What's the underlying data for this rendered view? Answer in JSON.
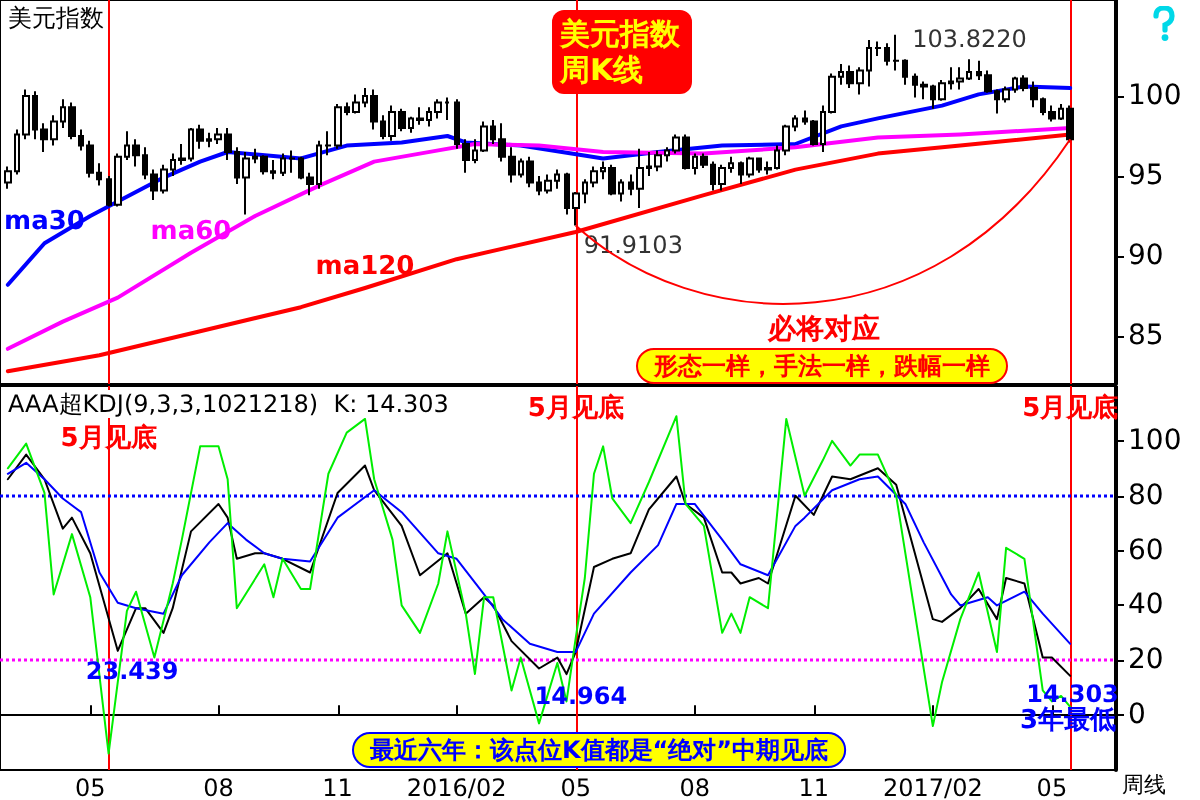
{
  "chart_data": [
    {
      "type": "candlestick",
      "title": "美元指数",
      "x": [
        "2015-02-27",
        "2015-03-06",
        "2015-03-13",
        "2015-03-20",
        "2015-03-27",
        "2015-04-03",
        "2015-04-10",
        "2015-04-17",
        "2015-04-24",
        "2015-05-01",
        "2015-05-08",
        "2015-05-15",
        "2015-05-22",
        "2015-05-29",
        "2015-06-05",
        "2015-06-12",
        "2015-06-19",
        "2015-06-26",
        "2015-07-03",
        "2015-07-10",
        "2015-07-17",
        "2015-07-24",
        "2015-07-31",
        "2015-08-07",
        "2015-08-14",
        "2015-08-21",
        "2015-08-28",
        "2015-09-04",
        "2015-09-11",
        "2015-09-18",
        "2015-09-25",
        "2015-10-02",
        "2015-10-09",
        "2015-10-16",
        "2015-10-23",
        "2015-10-30",
        "2015-11-06",
        "2015-11-13",
        "2015-11-20",
        "2015-11-27",
        "2015-12-04",
        "2015-12-11",
        "2015-12-18",
        "2015-12-25",
        "2016-01-01",
        "2016-01-08",
        "2016-01-15",
        "2016-01-22",
        "2016-01-29",
        "2016-02-05",
        "2016-02-12",
        "2016-02-19",
        "2016-02-26",
        "2016-03-04",
        "2016-03-11",
        "2016-03-18",
        "2016-03-25",
        "2016-04-01",
        "2016-04-08",
        "2016-04-15",
        "2016-04-22",
        "2016-04-29",
        "2016-05-06",
        "2016-05-13",
        "2016-05-20",
        "2016-05-27",
        "2016-06-03",
        "2016-06-10",
        "2016-06-17",
        "2016-06-24",
        "2016-07-01",
        "2016-07-08",
        "2016-07-15",
        "2016-07-22",
        "2016-07-29",
        "2016-08-05",
        "2016-08-12",
        "2016-08-19",
        "2016-08-26",
        "2016-09-02",
        "2016-09-09",
        "2016-09-16",
        "2016-09-23",
        "2016-09-30",
        "2016-10-07",
        "2016-10-14",
        "2016-10-21",
        "2016-10-28",
        "2016-11-04",
        "2016-11-11",
        "2016-11-18",
        "2016-11-25",
        "2016-12-02",
        "2016-12-09",
        "2016-12-16",
        "2016-12-23",
        "2016-12-30",
        "2017-01-06",
        "2017-01-13",
        "2017-01-20",
        "2017-01-27",
        "2017-02-03",
        "2017-02-10",
        "2017-02-17",
        "2017-02-24",
        "2017-03-03",
        "2017-03-10",
        "2017-03-17",
        "2017-03-24",
        "2017-03-31",
        "2017-04-07",
        "2017-04-14",
        "2017-04-21",
        "2017-04-28",
        "2017-05-05",
        "2017-05-12",
        "2017-05-19"
      ],
      "ohlc": [
        [
          94.6,
          95.6,
          94.2,
          95.3
        ],
        [
          95.3,
          97.9,
          95.1,
          97.6
        ],
        [
          97.6,
          100.4,
          97.3,
          100.0
        ],
        [
          100.0,
          100.3,
          97.3,
          97.9
        ],
        [
          97.9,
          98.3,
          96.5,
          97.3
        ],
        [
          97.3,
          98.8,
          96.9,
          98.4
        ],
        [
          98.4,
          99.8,
          98.0,
          99.3
        ],
        [
          99.3,
          99.6,
          97.3,
          97.5
        ],
        [
          97.5,
          97.9,
          96.6,
          96.9
        ],
        [
          96.9,
          97.2,
          94.9,
          95.2
        ],
        [
          95.2,
          95.8,
          94.4,
          94.8
        ],
        [
          94.8,
          95.0,
          93.1,
          93.2
        ],
        [
          93.2,
          96.4,
          93.1,
          96.2
        ],
        [
          96.2,
          97.8,
          96.0,
          96.9
        ],
        [
          96.9,
          97.3,
          95.6,
          96.3
        ],
        [
          96.3,
          96.8,
          94.8,
          95.1
        ],
        [
          95.1,
          95.4,
          93.5,
          94.1
        ],
        [
          94.1,
          95.7,
          93.9,
          95.4
        ],
        [
          95.4,
          96.4,
          95.0,
          96.0
        ],
        [
          96.0,
          97.0,
          95.7,
          96.1
        ],
        [
          96.1,
          98.0,
          95.9,
          97.9
        ],
        [
          97.9,
          98.2,
          96.7,
          97.2
        ],
        [
          97.2,
          97.7,
          96.8,
          97.3
        ],
        [
          97.3,
          98.0,
          97.0,
          97.6
        ],
        [
          97.6,
          98.0,
          96.0,
          96.5
        ],
        [
          96.5,
          96.8,
          94.5,
          94.9
        ],
        [
          94.9,
          96.5,
          92.6,
          96.1
        ],
        [
          96.1,
          96.7,
          95.8,
          96.2
        ],
        [
          96.2,
          96.3,
          95.1,
          95.3
        ],
        [
          95.3,
          96.0,
          94.8,
          95.2
        ],
        [
          95.2,
          96.4,
          95.0,
          96.1
        ],
        [
          96.1,
          96.6,
          95.2,
          96.1
        ],
        [
          96.1,
          96.2,
          94.8,
          94.9
        ],
        [
          94.9,
          95.2,
          93.8,
          94.5
        ],
        [
          94.5,
          97.2,
          94.2,
          96.9
        ],
        [
          96.9,
          97.8,
          96.3,
          96.9
        ],
        [
          96.9,
          99.5,
          96.7,
          99.3
        ],
        [
          99.3,
          99.6,
          98.8,
          99.0
        ],
        [
          99.0,
          100.1,
          98.9,
          99.6
        ],
        [
          99.6,
          100.5,
          99.3,
          100.0
        ],
        [
          100.0,
          100.4,
          97.9,
          98.4
        ],
        [
          98.4,
          98.8,
          97.3,
          97.5
        ],
        [
          97.5,
          99.4,
          97.2,
          99.0
        ],
        [
          99.0,
          99.2,
          97.8,
          98.0
        ],
        [
          98.0,
          98.7,
          97.7,
          98.6
        ],
        [
          98.6,
          99.3,
          98.2,
          98.5
        ],
        [
          98.5,
          99.3,
          98.1,
          99.0
        ],
        [
          99.0,
          99.8,
          98.6,
          99.6
        ],
        [
          99.6,
          99.9,
          98.5,
          99.6
        ],
        [
          99.6,
          99.8,
          96.7,
          97.0
        ],
        [
          97.0,
          97.3,
          95.2,
          96.0
        ],
        [
          96.0,
          97.3,
          95.8,
          96.6
        ],
        [
          96.6,
          98.4,
          96.5,
          98.1
        ],
        [
          98.1,
          98.5,
          97.0,
          97.3
        ],
        [
          97.3,
          98.3,
          95.9,
          96.2
        ],
        [
          96.2,
          96.8,
          94.6,
          95.1
        ],
        [
          95.1,
          96.1,
          94.9,
          95.9
        ],
        [
          95.9,
          96.2,
          94.3,
          94.6
        ],
        [
          94.6,
          95.0,
          93.8,
          94.1
        ],
        [
          94.1,
          95.1,
          93.9,
          94.7
        ],
        [
          94.7,
          95.4,
          94.2,
          95.1
        ],
        [
          95.1,
          95.2,
          92.6,
          93.0
        ],
        [
          93.0,
          94.0,
          91.9103,
          93.9
        ],
        [
          93.9,
          94.8,
          93.3,
          94.6
        ],
        [
          94.6,
          95.6,
          94.3,
          95.3
        ],
        [
          95.3,
          95.9,
          94.8,
          95.5
        ],
        [
          95.5,
          95.7,
          93.8,
          93.9
        ],
        [
          93.9,
          94.8,
          93.4,
          94.6
        ],
        [
          94.6,
          95.1,
          93.8,
          94.2
        ],
        [
          94.2,
          96.7,
          93.0,
          95.5
        ],
        [
          95.5,
          96.5,
          95.0,
          95.6
        ],
        [
          95.6,
          96.6,
          95.3,
          96.3
        ],
        [
          96.3,
          96.8,
          95.9,
          96.6
        ],
        [
          96.6,
          97.6,
          96.4,
          97.4
        ],
        [
          97.4,
          97.6,
          95.4,
          95.5
        ],
        [
          95.5,
          96.4,
          95.1,
          96.2
        ],
        [
          96.2,
          96.4,
          95.5,
          95.7
        ],
        [
          95.7,
          95.9,
          94.1,
          94.5
        ],
        [
          94.5,
          95.7,
          94.1,
          95.5
        ],
        [
          95.5,
          96.2,
          95.2,
          95.8
        ],
        [
          95.8,
          95.9,
          94.5,
          95.1
        ],
        [
          95.1,
          96.2,
          94.9,
          96.1
        ],
        [
          96.1,
          96.1,
          95.2,
          95.4
        ],
        [
          95.4,
          95.9,
          95.1,
          95.5
        ],
        [
          95.5,
          96.9,
          95.4,
          96.6
        ],
        [
          96.6,
          98.2,
          96.3,
          98.1
        ],
        [
          98.1,
          98.8,
          97.8,
          98.6
        ],
        [
          98.6,
          99.1,
          98.2,
          98.4
        ],
        [
          98.4,
          98.5,
          96.9,
          97.0
        ],
        [
          97.0,
          99.4,
          96.5,
          99.0
        ],
        [
          99.0,
          101.4,
          98.9,
          101.2
        ],
        [
          101.2,
          102.0,
          100.7,
          101.5
        ],
        [
          101.5,
          101.9,
          100.5,
          100.8
        ],
        [
          100.8,
          101.8,
          100.1,
          101.6
        ],
        [
          101.6,
          103.5,
          100.6,
          103.0
        ],
        [
          103.0,
          103.4,
          102.5,
          103.0
        ],
        [
          103.0,
          103.3,
          101.9,
          102.2
        ],
        [
          102.2,
          103.822,
          101.6,
          102.2
        ],
        [
          102.2,
          102.3,
          100.7,
          101.2
        ],
        [
          101.2,
          101.4,
          99.9,
          100.7
        ],
        [
          100.7,
          100.9,
          99.8,
          100.6
        ],
        [
          100.6,
          100.7,
          99.2,
          99.8
        ],
        [
          99.8,
          101.0,
          99.7,
          100.8
        ],
        [
          100.8,
          101.8,
          100.4,
          100.9
        ],
        [
          100.9,
          101.8,
          100.4,
          101.1
        ],
        [
          101.1,
          102.3,
          101.0,
          101.5
        ],
        [
          101.5,
          102.2,
          101.0,
          101.3
        ],
        [
          101.3,
          101.6,
          100.2,
          100.3
        ],
        [
          100.3,
          100.4,
          98.9,
          99.8
        ],
        [
          99.8,
          100.6,
          99.6,
          100.4
        ],
        [
          100.4,
          101.2,
          100.2,
          101.1
        ],
        [
          101.1,
          101.3,
          100.3,
          100.5
        ],
        [
          100.5,
          100.9,
          99.3,
          99.8
        ],
        [
          99.8,
          99.9,
          98.8,
          99.0
        ],
        [
          99.0,
          99.4,
          98.4,
          98.6
        ],
        [
          98.6,
          99.5,
          98.5,
          99.2
        ],
        [
          99.2,
          99.4,
          97.1,
          97.3
        ]
      ],
      "color": "#000000",
      "series": [
        {
          "name": "ma30",
          "type": "line",
          "color": "#0000ff",
          "x": [
            "2015-02-27",
            "2015-03-27",
            "2015-05-01",
            "2015-05-22",
            "2015-06-26",
            "2015-07-24",
            "2015-08-14",
            "2015-10-09",
            "2015-11-13",
            "2015-12-25",
            "2016-01-29",
            "2016-02-12",
            "2016-03-25",
            "2016-05-27",
            "2016-07-08",
            "2016-08-26",
            "2016-10-21",
            "2016-11-25",
            "2016-12-23",
            "2017-02-10",
            "2017-03-10",
            "2017-04-14",
            "2017-05-19"
          ],
          "values": [
            88.2,
            90.8,
            92.5,
            93.4,
            94.9,
            95.9,
            96.5,
            96.1,
            96.9,
            97.1,
            97.5,
            97.1,
            96.9,
            96.1,
            96.5,
            96.9,
            97.0,
            98.1,
            98.6,
            99.4,
            100.1,
            100.6,
            100.5
          ]
        },
        {
          "name": "ma60",
          "type": "line",
          "color": "#ff00ff",
          "x": [
            "2015-02-27",
            "2015-04-10",
            "2015-05-22",
            "2015-07-17",
            "2015-09-04",
            "2015-10-23",
            "2015-12-04",
            "2016-01-22",
            "2016-02-19",
            "2016-04-08",
            "2016-05-27",
            "2016-08-12",
            "2016-10-21",
            "2016-12-23",
            "2017-02-24",
            "2017-05-19"
          ],
          "values": [
            84.2,
            85.9,
            87.4,
            90.2,
            92.5,
            94.4,
            95.9,
            96.6,
            97.0,
            96.9,
            96.5,
            96.4,
            96.8,
            97.4,
            97.6,
            98.0
          ]
        },
        {
          "name": "ma120",
          "type": "line",
          "color": "#ff0000",
          "x": [
            "2015-02-27",
            "2015-05-08",
            "2015-07-24",
            "2015-10-09",
            "2015-11-27",
            "2016-02-05",
            "2016-05-06",
            "2016-08-12",
            "2016-10-21",
            "2016-12-23",
            "2017-02-24",
            "2017-05-19"
          ],
          "values": [
            82.8,
            83.8,
            85.3,
            86.8,
            88.0,
            89.8,
            91.5,
            93.8,
            95.4,
            96.4,
            96.9,
            97.6
          ]
        }
      ],
      "xlim": [
        "2015-02-21",
        "2017-06-23"
      ],
      "ylim": [
        82,
        106
      ],
      "yticks": [
        85,
        90,
        95,
        100
      ],
      "grid": false,
      "legend": false,
      "marker": "none",
      "line_style": "solid",
      "tick_labels": "y",
      "ref_lines": [
        {
          "axis": "x",
          "value": "2015-05-15",
          "color": "#ff0000"
        },
        {
          "axis": "x",
          "value": "2016-05-06",
          "color": "#ff0000"
        },
        {
          "axis": "x",
          "value": "2017-05-19",
          "color": "#ff0000"
        }
      ],
      "annotations": [
        "美元指数周K线",
        {
          "text": "103.8220",
          "x": "2017-01-06",
          "y": 103.822
        },
        {
          "text": "91.9103",
          "x": "2016-05-06",
          "y": 91.9103
        },
        "必将对应",
        "形态一样，手法一样，跌幅一样"
      ]
    },
    {
      "type": "line",
      "title": "AAA超KDJ(9,3,3,1021218)  K: 14.303",
      "series": [
        {
          "color": "#000000",
          "x": [
            "2015-02-27",
            "2015-03-13",
            "2015-03-27",
            "2015-04-10",
            "2015-04-17",
            "2015-05-01",
            "2015-05-22",
            "2015-06-05",
            "2015-06-12",
            "2015-06-26",
            "2015-07-03",
            "2015-07-17",
            "2015-08-07",
            "2015-08-14",
            "2015-08-21",
            "2015-09-04",
            "2015-09-11",
            "2015-09-25",
            "2015-10-16",
            "2015-11-06",
            "2015-11-27",
            "2015-12-04",
            "2015-12-25",
            "2016-01-08",
            "2016-01-29",
            "2016-02-12",
            "2016-02-26",
            "2016-03-04",
            "2016-03-18",
            "2016-04-08",
            "2016-04-22",
            "2016-04-29",
            "2016-05-06",
            "2016-05-20",
            "2016-06-03",
            "2016-06-17",
            "2016-07-01",
            "2016-07-22",
            "2016-07-29",
            "2016-08-12",
            "2016-08-26",
            "2016-09-02",
            "2016-09-09",
            "2016-09-23",
            "2016-09-30",
            "2016-10-21",
            "2016-11-04",
            "2016-11-18",
            "2016-12-02",
            "2016-12-23",
            "2017-01-06",
            "2017-02-03",
            "2017-02-10",
            "2017-02-24",
            "2017-03-10",
            "2017-03-24",
            "2017-03-31",
            "2017-04-14",
            "2017-04-28",
            "2017-05-05",
            "2017-05-19"
          ],
          "values": [
            86,
            95,
            86,
            68,
            72,
            59,
            23.439,
            39,
            39,
            30,
            39,
            67,
            77,
            72,
            57,
            59,
            59,
            57,
            52,
            81,
            91,
            82,
            69,
            51,
            59,
            37,
            43,
            40,
            27,
            17,
            21,
            14.964,
            23,
            54,
            57,
            59,
            75,
            87,
            77,
            72,
            52,
            52,
            48,
            50,
            48,
            80,
            73,
            87,
            86,
            90,
            84,
            35,
            34,
            39,
            46,
            35,
            50,
            48,
            21,
            21,
            14.303
          ]
        },
        {
          "color": "#0000ff",
          "x": [
            "2015-02-27",
            "2015-03-13",
            "2015-03-27",
            "2015-04-10",
            "2015-04-24",
            "2015-05-08",
            "2015-05-22",
            "2015-06-05",
            "2015-06-26",
            "2015-07-10",
            "2015-07-31",
            "2015-08-14",
            "2015-08-28",
            "2015-09-11",
            "2015-09-25",
            "2015-10-16",
            "2015-11-06",
            "2015-12-04",
            "2015-12-25",
            "2016-01-22",
            "2016-02-05",
            "2016-02-26",
            "2016-03-11",
            "2016-04-01",
            "2016-04-22",
            "2016-05-06",
            "2016-05-20",
            "2016-06-17",
            "2016-07-08",
            "2016-07-22",
            "2016-08-05",
            "2016-08-26",
            "2016-09-09",
            "2016-09-30",
            "2016-10-21",
            "2016-10-28",
            "2016-11-18",
            "2016-12-09",
            "2016-12-23",
            "2017-01-13",
            "2017-01-27",
            "2017-02-17",
            "2017-02-24",
            "2017-03-17",
            "2017-03-24",
            "2017-04-14",
            "2017-04-28",
            "2017-05-19"
          ],
          "values": [
            88,
            92,
            86,
            79,
            74,
            52,
            41,
            39,
            37,
            51,
            63,
            70,
            64,
            59,
            57,
            56,
            72,
            82,
            74,
            59,
            57,
            44,
            35,
            26,
            23,
            23,
            37,
            52,
            62,
            77,
            77,
            64,
            55,
            51,
            69,
            72,
            82,
            86,
            87,
            77,
            63,
            44,
            40,
            43,
            40,
            45,
            37,
            26
          ]
        },
        {
          "color": "#00ee00",
          "x": [
            "2015-02-27",
            "2015-03-13",
            "2015-03-27",
            "2015-04-03",
            "2015-04-17",
            "2015-05-01",
            "2015-05-15",
            "2015-05-29",
            "2015-06-05",
            "2015-06-19",
            "2015-07-03",
            "2015-07-10",
            "2015-07-24",
            "2015-08-07",
            "2015-08-14",
            "2015-08-21",
            "2015-09-11",
            "2015-09-18",
            "2015-09-25",
            "2015-10-09",
            "2015-10-16",
            "2015-10-30",
            "2015-11-13",
            "2015-11-27",
            "2015-12-04",
            "2015-12-18",
            "2015-12-25",
            "2016-01-08",
            "2016-01-22",
            "2016-01-29",
            "2016-02-12",
            "2016-02-19",
            "2016-02-26",
            "2016-03-04",
            "2016-03-18",
            "2016-03-25",
            "2016-04-08",
            "2016-04-22",
            "2016-04-29",
            "2016-05-06",
            "2016-05-13",
            "2016-05-20",
            "2016-05-27",
            "2016-06-03",
            "2016-06-17",
            "2016-07-01",
            "2016-07-22",
            "2016-07-29",
            "2016-08-12",
            "2016-08-26",
            "2016-09-02",
            "2016-09-09",
            "2016-09-16",
            "2016-09-30",
            "2016-10-14",
            "2016-10-28",
            "2016-11-11",
            "2016-11-18",
            "2016-12-02",
            "2016-12-09",
            "2016-12-23",
            "2017-01-06",
            "2017-02-03",
            "2017-02-10",
            "2017-02-24",
            "2017-03-10",
            "2017-03-24",
            "2017-03-31",
            "2017-04-14",
            "2017-04-28",
            "2017-05-05",
            "2017-05-12",
            "2017-05-19"
          ],
          "values": [
            90,
            99,
            81,
            44,
            66,
            43,
            -14,
            38,
            45,
            21,
            48,
            64,
            98,
            98,
            86,
            39,
            55,
            43,
            57,
            46,
            46,
            88,
            103,
            108,
            86,
            64,
            40,
            30,
            48,
            67,
            37,
            15,
            43,
            43,
            9,
            21,
            -3,
            19,
            5,
            28,
            50,
            88,
            98,
            79,
            70,
            85,
            109,
            77,
            69,
            30,
            37,
            30,
            43,
            39,
            108,
            80,
            93,
            100,
            91,
            95,
            95,
            80,
            -4,
            12,
            35,
            52,
            23,
            61,
            57,
            9,
            5,
            7,
            3
          ]
        }
      ],
      "xlim": [
        "2015-02-21",
        "2017-06-23"
      ],
      "xticks": [
        {
          "value": "2015-05-01",
          "label": "05"
        },
        {
          "value": "2015-08-07",
          "label": "08"
        },
        {
          "value": "2015-11-06",
          "label": "11"
        },
        {
          "value": "2016-02-05",
          "label": "2016/02"
        },
        {
          "value": "2016-05-06",
          "label": "05"
        },
        {
          "value": "2016-08-05",
          "label": "08"
        },
        {
          "value": "2016-11-04",
          "label": "11"
        },
        {
          "value": "2017-02-03",
          "label": "2017/02"
        },
        {
          "value": "2017-05-05",
          "label": "05"
        }
      ],
      "ylim": [
        -20,
        120
      ],
      "yticks": [
        0,
        20,
        40,
        60,
        80,
        100
      ],
      "grid": false,
      "legend": false,
      "marker": "none",
      "line_style": "solid",
      "ref_lines": [
        {
          "axis": "x",
          "value": "2015-05-15",
          "label": "5月见底",
          "color": "#ff0000"
        },
        {
          "axis": "x",
          "value": "2016-05-06",
          "label": "5月见底",
          "color": "#ff0000"
        },
        {
          "axis": "x",
          "value": "2017-05-19",
          "label": "5月见底",
          "color": "#ff0000"
        },
        {
          "axis": "y",
          "value": 80,
          "color": "#0000ff",
          "line_style": "dotted"
        },
        {
          "axis": "y",
          "value": 20,
          "color": "#ff00ff",
          "line_style": "dotted"
        }
      ],
      "annotations": [
        {
          "text": "23.439",
          "x": "2015-05-22",
          "y": 23.439
        },
        {
          "text": "14.964",
          "x": "2016-04-29",
          "y": 14.964
        },
        {
          "text": "14.303",
          "x": "2017-05-19",
          "y": 14.303
        },
        "3年最低",
        "最近六年：该点位K值都是“绝对”中期见底",
        "周线"
      ]
    }
  ]
}
